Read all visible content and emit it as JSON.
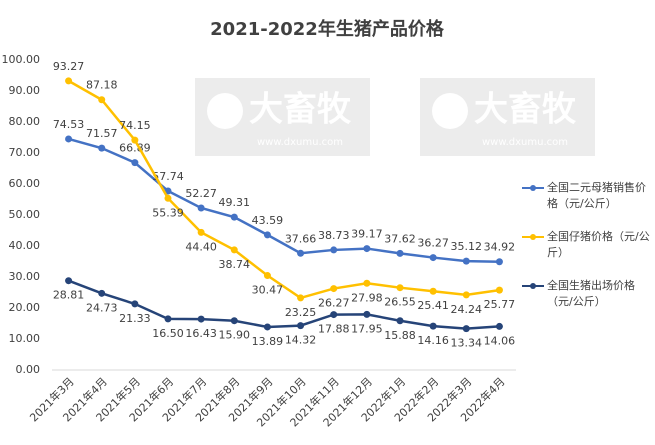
{
  "chart_data": {
    "type": "line",
    "title": "2021-2022年生猪产品价格",
    "watermark": [
      "大畜牧",
      "www.dxumu.com"
    ],
    "categories": [
      "2021年3月",
      "2021年4月",
      "2021年5月",
      "2021年6月",
      "2021年7月",
      "2021年8月",
      "2021年9月",
      "2021年10月",
      "2021年11月",
      "2021年12月",
      "2022年1月",
      "2022年2月",
      "2022年3月",
      "2022年4月"
    ],
    "series": [
      {
        "name": "全国二元母猪销售价格（元/公斤）",
        "color": "#4472c4",
        "values": [
          74.53,
          71.57,
          66.89,
          57.74,
          52.27,
          49.31,
          43.59,
          37.66,
          38.73,
          39.17,
          37.62,
          36.27,
          35.12,
          34.92
        ],
        "value_labels": [
          "74.53",
          "71.57",
          "66.89",
          "57.74",
          "52.27",
          "49.31",
          "43.59",
          "37.66",
          "38.73",
          "39.17",
          "37.62",
          "36.27",
          "35.12",
          "34.92"
        ]
      },
      {
        "name": "全国仔猪价格（元/公斤）",
        "color": "#ffc000",
        "values": [
          93.27,
          87.18,
          74.15,
          55.39,
          44.4,
          38.74,
          30.47,
          23.25,
          26.27,
          27.98,
          26.55,
          25.41,
          24.24,
          25.77
        ],
        "value_labels": [
          "93.27",
          "87.18",
          "74.15",
          "55.39",
          "44.40",
          "38.74",
          "30.47",
          "23.25",
          "26.27",
          "27.98",
          "26.55",
          "25.41",
          "24.24",
          "25.77"
        ]
      },
      {
        "name": "全国生猪出场价格（元/公斤）",
        "color": "#264478",
        "values": [
          28.81,
          24.73,
          21.33,
          16.5,
          16.43,
          15.9,
          13.89,
          14.32,
          17.88,
          17.95,
          15.88,
          14.16,
          13.34,
          14.06
        ],
        "value_labels": [
          "28.81",
          "24.73",
          "21.33",
          "16.50",
          "16.43",
          "15.90",
          "13.89",
          "14.32",
          "17.88",
          "17.95",
          "15.88",
          "14.16",
          "13.34",
          "14.06"
        ]
      }
    ],
    "ylim": [
      0,
      100
    ],
    "yticks": [
      {
        "value": 0,
        "label": "0.00"
      },
      {
        "value": 10,
        "label": "10.00"
      },
      {
        "value": 20,
        "label": "20.00"
      },
      {
        "value": 30,
        "label": "30.00"
      },
      {
        "value": 40,
        "label": "40.00"
      },
      {
        "value": 50,
        "label": "50.00"
      },
      {
        "value": 60,
        "label": "60.00"
      },
      {
        "value": 70,
        "label": "70.00"
      },
      {
        "value": 80,
        "label": "80.00"
      },
      {
        "value": 90,
        "label": "90.00"
      },
      {
        "value": 100,
        "label": "100.00"
      }
    ],
    "grid": false,
    "legend": "right"
  }
}
